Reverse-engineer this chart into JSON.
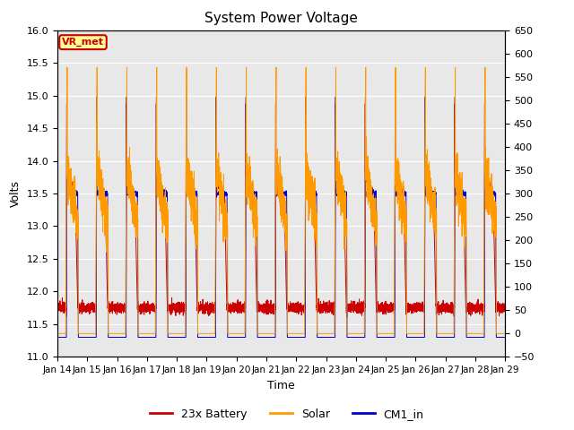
{
  "title": "System Power Voltage",
  "xlabel": "Time",
  "ylabel_left": "Volts",
  "ylabel_right": "",
  "ylim_left": [
    11.0,
    16.0
  ],
  "ylim_right": [
    -50,
    650
  ],
  "yticks_left": [
    11.0,
    11.5,
    12.0,
    12.5,
    13.0,
    13.5,
    14.0,
    14.5,
    15.0,
    15.5,
    16.0
  ],
  "yticks_right": [
    -50,
    0,
    50,
    100,
    150,
    200,
    250,
    300,
    350,
    400,
    450,
    500,
    550,
    600,
    650
  ],
  "xtick_labels": [
    "Jan 14",
    "Jan 15",
    "Jan 16",
    "Jan 17",
    "Jan 18",
    "Jan 19",
    "Jan 20",
    "Jan 21",
    "Jan 22",
    "Jan 23",
    "Jan 24",
    "Jan 25",
    "Jan 26",
    "Jan 27",
    "Jan 28",
    "Jan 29"
  ],
  "num_days": 15,
  "legend_labels": [
    "23x Battery",
    "Solar",
    "CM1_in"
  ],
  "legend_colors": [
    "#cc0000",
    "#ff9900",
    "#0000cc"
  ],
  "annotation_text": "VR_met",
  "annotation_color": "#cc0000",
  "annotation_bg": "#ffff99",
  "bg_color": "#e8e8e8",
  "title_fontsize": 11
}
